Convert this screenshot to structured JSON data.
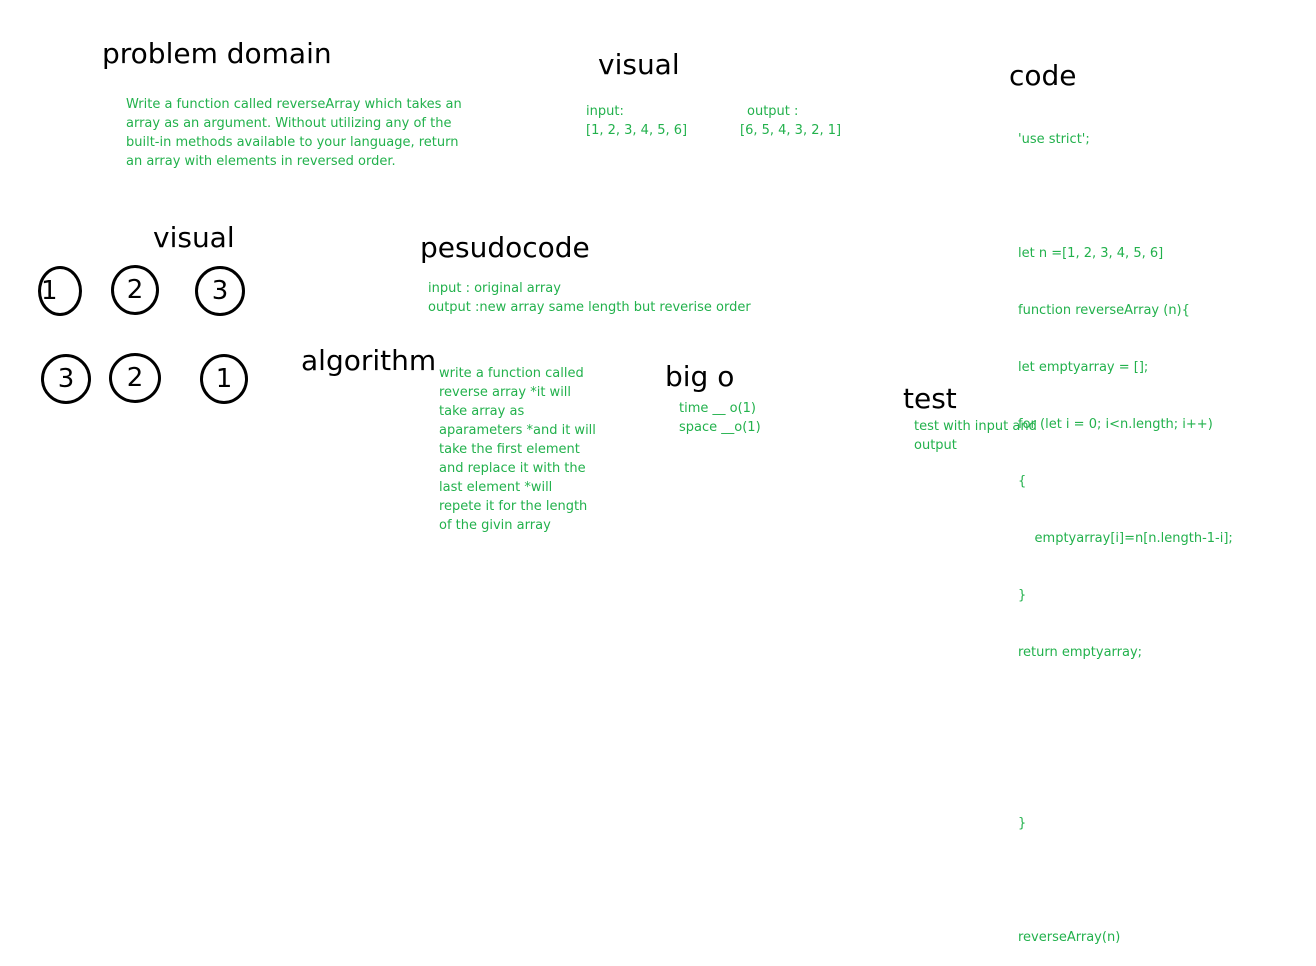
{
  "problem_domain": {
    "title": "problem domain",
    "lines": [
      "Write a function called reverseArray which takes an",
      "array as an argument. Without utilizing any of the",
      "built-in methods available to your language, return",
      "an array with elements in reversed order."
    ]
  },
  "visual_top": {
    "title": "visual",
    "input_label": "input:",
    "input_value": "[1, 2, 3, 4, 5, 6]",
    "output_label": "output :",
    "output_value": "[6, 5, 4, 3, 2, 1]"
  },
  "code": {
    "title": "code",
    "lines": [
      "'use strict';",
      "",
      "let n =[1, 2, 3, 4, 5, 6]",
      "function reverseArray (n){",
      "let emptyarray = [];",
      "for (let i = 0; i<n.length; i++)",
      "{",
      "    emptyarray[i]=n[n.length-1-i];",
      "}",
      "return emptyarray;",
      "",
      "",
      "}",
      "",
      "reverseArray(n)"
    ]
  },
  "visual_left": {
    "title": "visual",
    "row1": [
      "1",
      "2",
      "3"
    ],
    "row2": [
      "3",
      "2",
      "1"
    ]
  },
  "pseudocode": {
    "title": "pesudocode",
    "lines": [
      "input : original array",
      "output :new array same length but reverise order"
    ]
  },
  "algorithm": {
    "title": "algorithm",
    "lines": [
      "write a function called",
      "reverse array *it will",
      "take array as",
      "aparameters *and it will",
      "take the first element",
      "and replace it with the",
      "last element *will",
      "repete it for the length",
      "of the givin array"
    ]
  },
  "big_o": {
    "title": "big o",
    "lines": [
      "time __ o(1)",
      "space __o(1)"
    ]
  },
  "test": {
    "title": "test",
    "lines": [
      "test with input and",
      "output"
    ]
  }
}
